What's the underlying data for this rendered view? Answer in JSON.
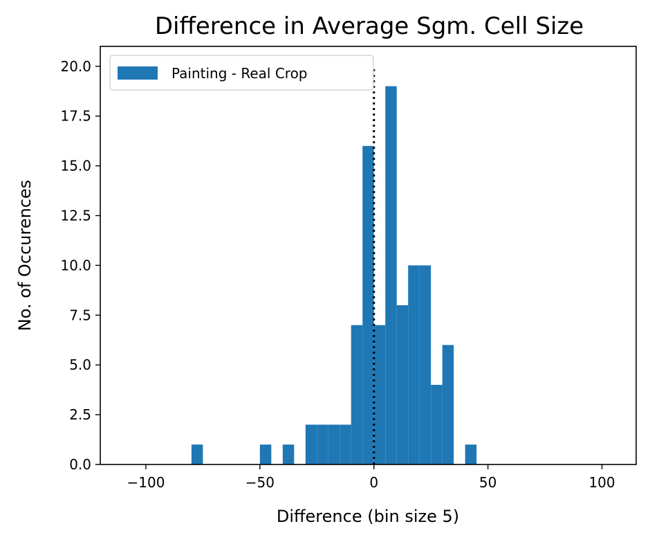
{
  "chart_data": {
    "type": "bar",
    "title": "Difference in Average Sgm. Cell Size",
    "xlabel": "Difference (bin size 5)",
    "ylabel": "No. of Occurences",
    "xlim": [
      -120,
      115
    ],
    "ylim": [
      0,
      21
    ],
    "xticks": [
      -100,
      -50,
      0,
      50,
      100
    ],
    "xtick_labels": [
      "−100",
      "−50",
      "0",
      "50",
      "100"
    ],
    "yticks": [
      0,
      2.5,
      5,
      7.5,
      10,
      12.5,
      15,
      17.5,
      20
    ],
    "ytick_labels": [
      "0.0",
      "2.5",
      "5.0",
      "7.5",
      "10.0",
      "12.5",
      "15.0",
      "17.5",
      "20.0"
    ],
    "grid": false,
    "legend": {
      "position": "top-left",
      "entries": [
        "Painting - Real Crop"
      ]
    },
    "series": [
      {
        "name": "Painting - Real Crop",
        "color": "#1f77b4",
        "bins": [
          {
            "x0": -80,
            "x1": -75,
            "count": 1
          },
          {
            "x0": -50,
            "x1": -45,
            "count": 1
          },
          {
            "x0": -40,
            "x1": -35,
            "count": 1
          },
          {
            "x0": -30,
            "x1": -25,
            "count": 2
          },
          {
            "x0": -25,
            "x1": -20,
            "count": 2
          },
          {
            "x0": -20,
            "x1": -15,
            "count": 2
          },
          {
            "x0": -15,
            "x1": -10,
            "count": 2
          },
          {
            "x0": -10,
            "x1": -5,
            "count": 7
          },
          {
            "x0": -5,
            "x1": 0,
            "count": 16
          },
          {
            "x0": 0,
            "x1": 5,
            "count": 7
          },
          {
            "x0": 5,
            "x1": 10,
            "count": 19
          },
          {
            "x0": 10,
            "x1": 15,
            "count": 8
          },
          {
            "x0": 15,
            "x1": 20,
            "count": 10
          },
          {
            "x0": 20,
            "x1": 25,
            "count": 10
          },
          {
            "x0": 25,
            "x1": 30,
            "count": 4
          },
          {
            "x0": 30,
            "x1": 35,
            "count": 6
          },
          {
            "x0": 40,
            "x1": 45,
            "count": 1
          }
        ]
      }
    ],
    "annotations": [
      {
        "type": "vertical-line",
        "x": 0,
        "style": "dotted",
        "color": "#000000",
        "y_from": 0,
        "y_to": 20
      }
    ]
  }
}
